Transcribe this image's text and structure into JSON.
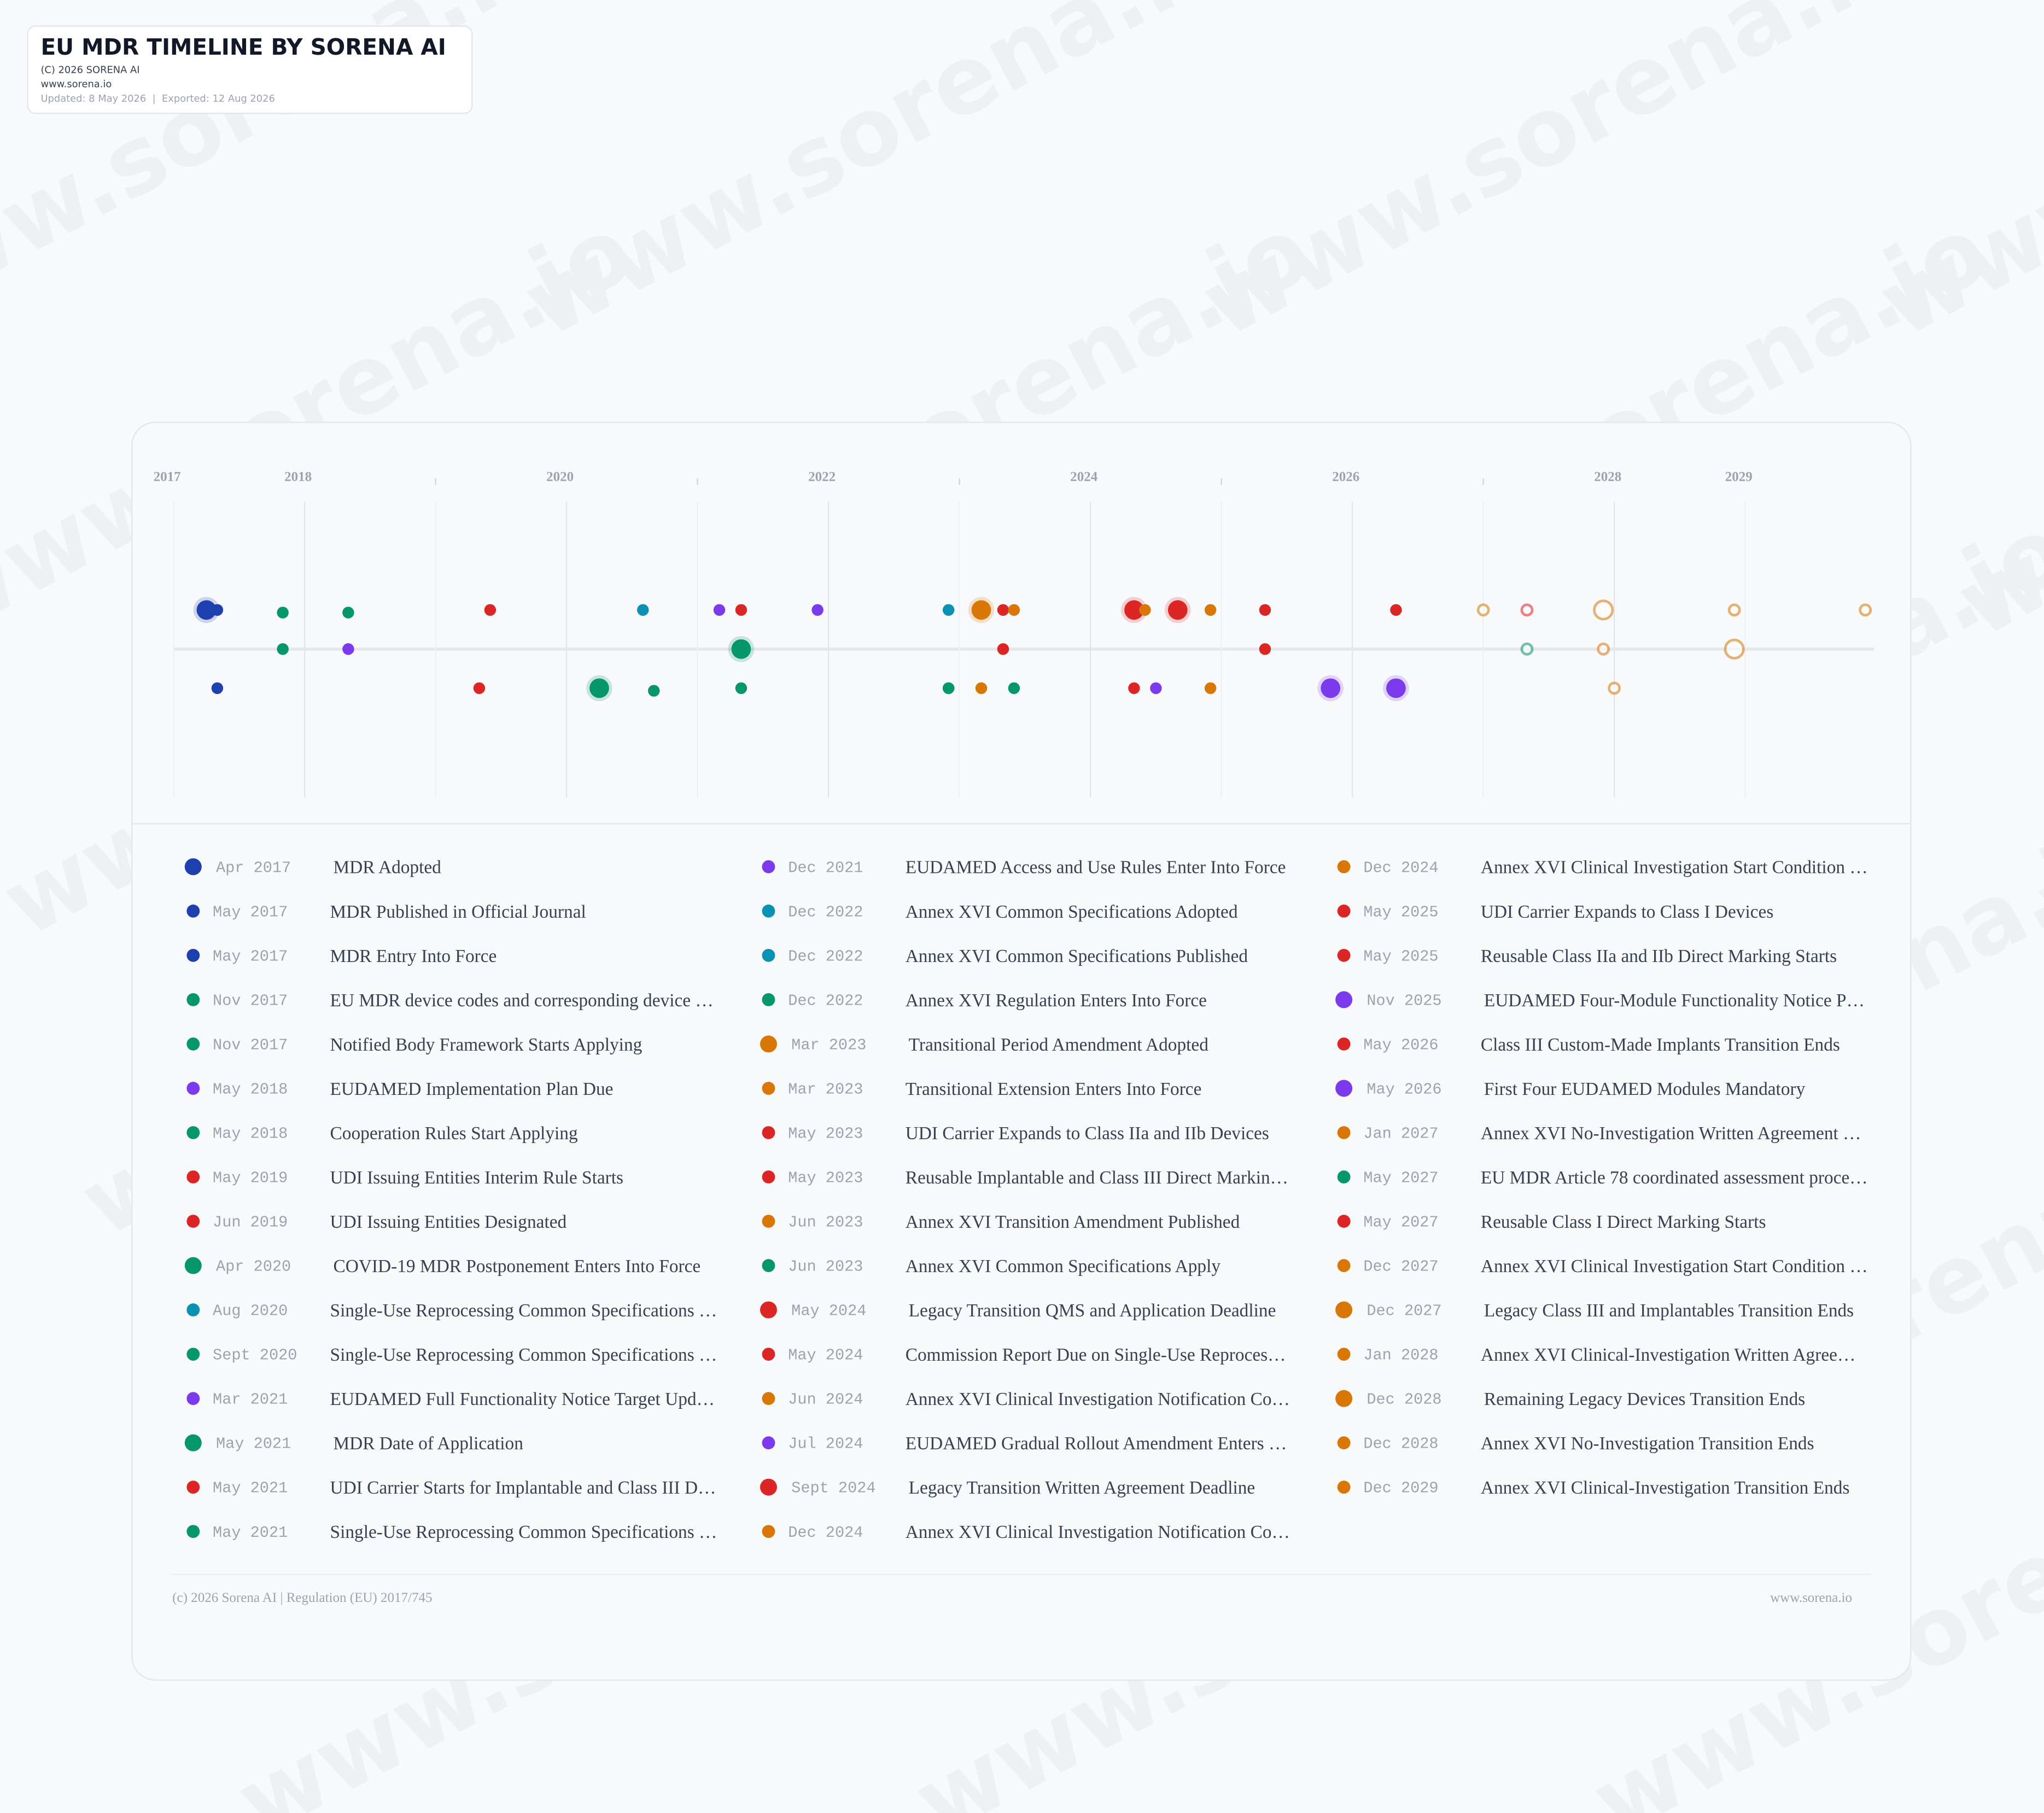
{
  "header": {
    "title": "EU MDR TIMELINE BY SORENA AI",
    "copyright": "(C) 2026 SORENA AI",
    "url": "www.sorena.io",
    "meta": "Updated: 8 May 2026  |  Exported: 12 Aug 2026"
  },
  "watermark": "www.sorena.io",
  "axis": {
    "year_labels": [
      "2017",
      "2018",
      "2020",
      "2022",
      "2024",
      "2026",
      "2028",
      "2029"
    ]
  },
  "events": [
    {
      "date": "Apr 2017",
      "label": "MDR Adopted",
      "color": "#1e40af"
    },
    {
      "date": "May 2017",
      "label": "MDR Published in Official Journal",
      "color": "#1e40af"
    },
    {
      "date": "May 2017",
      "label": "MDR Entry Into Force",
      "color": "#1e40af"
    },
    {
      "date": "Nov 2017",
      "label": "EU MDR device codes and corresponding device …",
      "color": "#059669"
    },
    {
      "date": "Nov 2017",
      "label": "Notified Body Framework Starts Applying",
      "color": "#059669"
    },
    {
      "date": "May 2018",
      "label": "EUDAMED Implementation Plan Due",
      "color": "#7c3aed"
    },
    {
      "date": "May 2018",
      "label": "Cooperation Rules Start Applying",
      "color": "#059669"
    },
    {
      "date": "May 2019",
      "label": "UDI Issuing Entities Interim Rule Starts",
      "color": "#dc2626"
    },
    {
      "date": "Jun 2019",
      "label": "UDI Issuing Entities Designated",
      "color": "#dc2626"
    },
    {
      "date": "Apr 2020",
      "label": "COVID-19 MDR Postponement Enters Into Force",
      "color": "#059669"
    },
    {
      "date": "Aug 2020",
      "label": "Single-Use Reprocessing Common Specifications …",
      "color": "#0891b2"
    },
    {
      "date": "Sept 2020",
      "label": "Single-Use Reprocessing Common Specifications …",
      "color": "#059669"
    },
    {
      "date": "Mar 2021",
      "label": "EUDAMED Full Functionality Notice Target Upd…",
      "color": "#7c3aed"
    },
    {
      "date": "May 2021",
      "label": "MDR Date of Application",
      "color": "#059669"
    },
    {
      "date": "May 2021",
      "label": "UDI Carrier Starts for Implantable and Class III D…",
      "color": "#dc2626"
    },
    {
      "date": "May 2021",
      "label": "Single-Use Reprocessing Common Specifications …",
      "color": "#059669"
    },
    {
      "date": "Dec 2021",
      "label": "EUDAMED Access and Use Rules Enter Into Force",
      "color": "#7c3aed"
    },
    {
      "date": "Dec 2022",
      "label": "Annex XVI Common Specifications Adopted",
      "color": "#0891b2"
    },
    {
      "date": "Dec 2022",
      "label": "Annex XVI Common Specifications Published",
      "color": "#0891b2"
    },
    {
      "date": "Dec 2022",
      "label": "Annex XVI Regulation Enters Into Force",
      "color": "#059669"
    },
    {
      "date": "Mar 2023",
      "label": "Transitional Period Amendment Adopted",
      "color": "#d97706"
    },
    {
      "date": "Mar 2023",
      "label": "Transitional Extension Enters Into Force",
      "color": "#d97706"
    },
    {
      "date": "May 2023",
      "label": "UDI Carrier Expands to Class IIa and IIb Devices",
      "color": "#dc2626"
    },
    {
      "date": "May 2023",
      "label": "Reusable Implantable and Class III Direct Markin…",
      "color": "#dc2626"
    },
    {
      "date": "Jun 2023",
      "label": "Annex XVI Transition Amendment Published",
      "color": "#d97706"
    },
    {
      "date": "Jun 2023",
      "label": "Annex XVI Common Specifications Apply",
      "color": "#059669"
    },
    {
      "date": "May 2024",
      "label": "Legacy Transition QMS and Application Deadline",
      "color": "#dc2626"
    },
    {
      "date": "May 2024",
      "label": "Commission Report Due on Single-Use Reproces…",
      "color": "#dc2626"
    },
    {
      "date": "Jun 2024",
      "label": "Annex XVI Clinical Investigation Notification Co…",
      "color": "#d97706"
    },
    {
      "date": "Jul 2024",
      "label": "EUDAMED Gradual Rollout Amendment Enters …",
      "color": "#7c3aed"
    },
    {
      "date": "Sept 2024",
      "label": "Legacy Transition Written Agreement Deadline",
      "color": "#dc2626"
    },
    {
      "date": "Dec 2024",
      "label": "Annex XVI Clinical Investigation Notification Co…",
      "color": "#d97706"
    },
    {
      "date": "Dec 2024",
      "label": "Annex XVI Clinical Investigation Start Condition …",
      "color": "#d97706"
    },
    {
      "date": "May 2025",
      "label": "UDI Carrier Expands to Class I Devices",
      "color": "#dc2626"
    },
    {
      "date": "May 2025",
      "label": "Reusable Class IIa and IIb Direct Marking Starts",
      "color": "#dc2626"
    },
    {
      "date": "Nov 2025",
      "label": "EUDAMED Four-Module Functionality Notice P…",
      "color": "#7c3aed"
    },
    {
      "date": "May 2026",
      "label": "Class III Custom-Made Implants Transition Ends",
      "color": "#dc2626"
    },
    {
      "date": "May 2026",
      "label": "First Four EUDAMED Modules Mandatory",
      "color": "#7c3aed"
    },
    {
      "date": "Jan 2027",
      "label": "Annex XVI No-Investigation Written Agreement …",
      "color": "#d97706"
    },
    {
      "date": "May 2027",
      "label": "EU MDR Article 78 coordinated assessment proce…",
      "color": "#059669"
    },
    {
      "date": "May 2027",
      "label": "Reusable Class I Direct Marking Starts",
      "color": "#dc2626"
    },
    {
      "date": "Dec 2027",
      "label": "Annex XVI Clinical Investigation Start Condition …",
      "color": "#d97706"
    },
    {
      "date": "Dec 2027",
      "label": "Legacy Class III and Implantables Transition Ends",
      "color": "#d97706"
    },
    {
      "date": "Jan 2028",
      "label": "Annex XVI Clinical-Investigation Written Agree…",
      "color": "#d97706"
    },
    {
      "date": "Dec 2028",
      "label": "Remaining Legacy Devices Transition Ends",
      "color": "#d97706"
    },
    {
      "date": "Dec 2028",
      "label": "Annex XVI No-Investigation Transition Ends",
      "color": "#d97706"
    },
    {
      "date": "Dec 2029",
      "label": "Annex XVI Clinical-Investigation Transition Ends",
      "color": "#d97706"
    }
  ],
  "footer": {
    "left": "(c) 2026 Sorena AI | Regulation (EU) 2017/745",
    "right": "www.sorena.io"
  }
}
